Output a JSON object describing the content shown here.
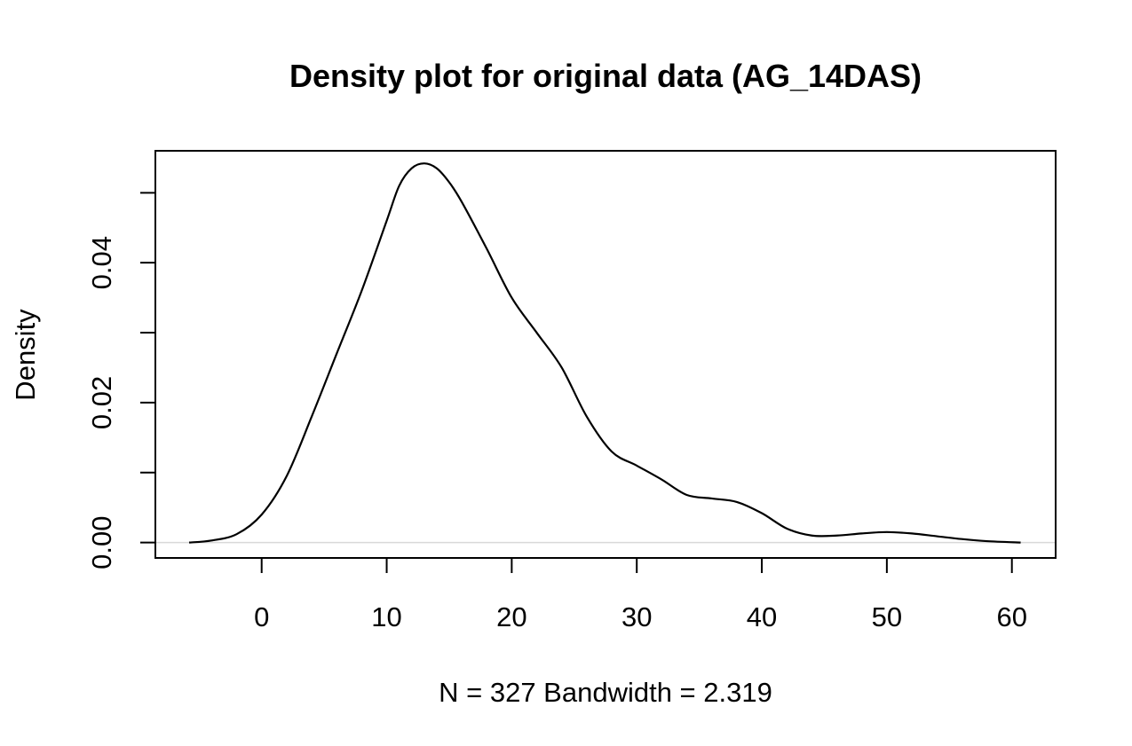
{
  "chart_data": {
    "type": "line",
    "title": "Density plot for original data (AG_14DAS)",
    "xlabel": "N = 327   Bandwidth = 2.319",
    "ylabel": "Density",
    "xlim": [
      -8.5,
      63.5
    ],
    "ylim": [
      -0.0022,
      0.056
    ],
    "x_ticks": [
      0,
      10,
      20,
      30,
      40,
      50,
      60
    ],
    "x_tick_labels": [
      "0",
      "10",
      "20",
      "30",
      "40",
      "50",
      "60"
    ],
    "y_ticks": [
      0.0,
      0.01,
      0.02,
      0.03,
      0.04,
      0.05
    ],
    "y_tick_labels": [
      "0.00",
      "",
      "0.02",
      "",
      "0.04",
      ""
    ],
    "grid": false,
    "legend": "none",
    "series": [
      {
        "line_color": "#000000",
        "x": [
          -5.8,
          -4,
          -2,
          0,
          2,
          4,
          6,
          8,
          10,
          11,
          12,
          13,
          14,
          15,
          16,
          18,
          20,
          22,
          24,
          26,
          28,
          30,
          32,
          34,
          36,
          38,
          40,
          42,
          44,
          46,
          48,
          50,
          52,
          54,
          56,
          58,
          60.7
        ],
        "y": [
          0.0,
          0.0003,
          0.0012,
          0.004,
          0.0095,
          0.018,
          0.027,
          0.036,
          0.046,
          0.051,
          0.0535,
          0.0542,
          0.0535,
          0.0515,
          0.0487,
          0.042,
          0.035,
          0.03,
          0.025,
          0.018,
          0.013,
          0.011,
          0.009,
          0.0068,
          0.0063,
          0.0058,
          0.0042,
          0.002,
          0.001,
          0.001,
          0.0013,
          0.0015,
          0.0013,
          0.0009,
          0.0005,
          0.0002,
          0.0
        ]
      }
    ]
  }
}
